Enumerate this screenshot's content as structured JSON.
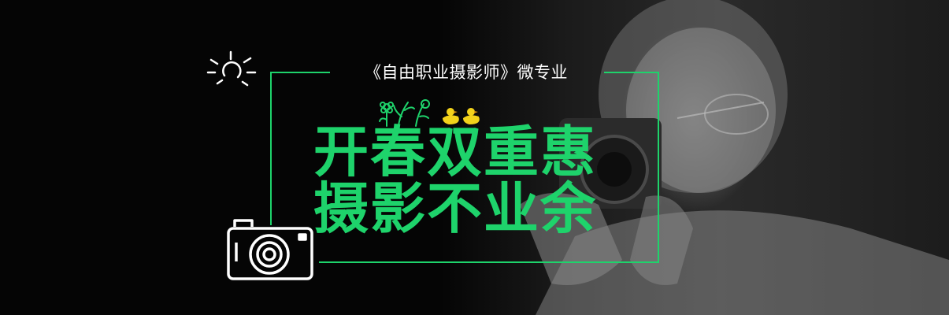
{
  "banner": {
    "subtitle": "《自由职业摄影师》微专业",
    "headline_line1": "开春双重惠",
    "headline_line2": "摄影不业余"
  },
  "colors": {
    "background": "#050505",
    "accent_green": "#1ed36b",
    "text_white": "#ffffff",
    "duck_yellow": "#f2d21b"
  },
  "icons": [
    "sun-icon",
    "camera-icon",
    "flower-icon",
    "plant-icon",
    "duck-icon"
  ]
}
